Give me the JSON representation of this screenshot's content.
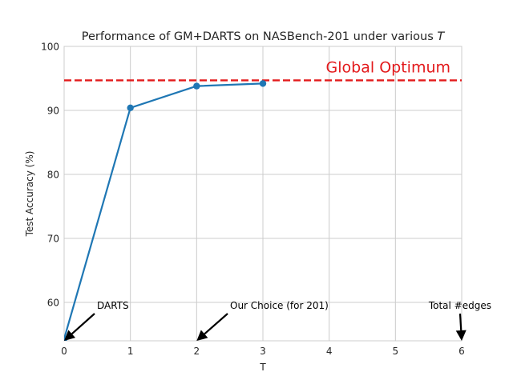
{
  "chart_data": {
    "type": "line",
    "title_main": "Performance of GM+DARTS on NASBench-201 under various ",
    "title_var": "T",
    "xlabel": "T",
    "ylabel": "Test Accuracy (%)",
    "xlim": [
      0,
      6
    ],
    "ylim": [
      54.0,
      100
    ],
    "xticks": [
      "0",
      "1",
      "2",
      "3",
      "4",
      "5",
      "6"
    ],
    "yticks": [
      "60",
      "70",
      "80",
      "90",
      "100"
    ],
    "grid": true,
    "series": [
      {
        "x": [
          0,
          1,
          2,
          3
        ],
        "y": [
          54.3,
          90.4,
          93.8,
          94.2
        ],
        "color": "#1f77b4"
      }
    ],
    "reference_line": {
      "y": 94.7,
      "label": "Global Optimum",
      "color": "#e31a1c",
      "style": "dashed"
    },
    "annotations": [
      {
        "text": "DARTS",
        "x": 0
      },
      {
        "text": "Our Choice (for 201)",
        "x": 2
      },
      {
        "text": "Total #edges",
        "x": 6
      }
    ]
  }
}
